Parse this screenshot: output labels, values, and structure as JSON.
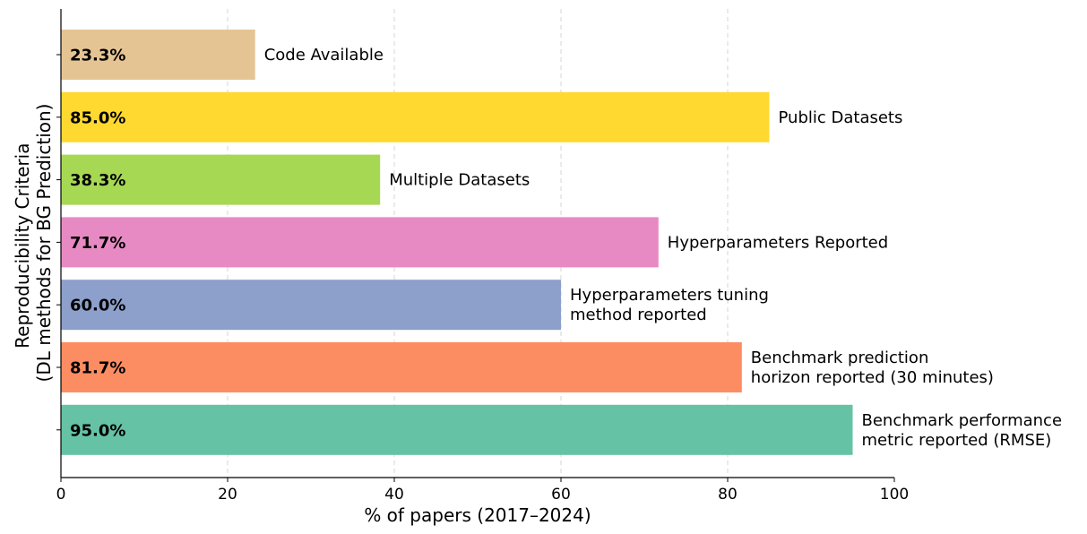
{
  "chart_data": {
    "type": "bar",
    "orientation": "horizontal",
    "xlabel": "% of papers (2017–2024)",
    "ylabel_lines": [
      "Reproducibility Criteria",
      "(DL methods for BG Prediction)"
    ],
    "xlim": [
      0,
      100
    ],
    "xticks": [
      0,
      20,
      40,
      60,
      80,
      100
    ],
    "grid": "x-dashed",
    "bars": [
      {
        "label_lines": [
          "Code Available"
        ],
        "value": 23.3,
        "value_label": "23.3%",
        "color": "#e5c494"
      },
      {
        "label_lines": [
          "Public Datasets"
        ],
        "value": 85.0,
        "value_label": "85.0%",
        "color": "#ffd92f"
      },
      {
        "label_lines": [
          "Multiple Datasets"
        ],
        "value": 38.3,
        "value_label": "38.3%",
        "color": "#a6d854"
      },
      {
        "label_lines": [
          "Hyperparameters Reported"
        ],
        "value": 71.7,
        "value_label": "71.7%",
        "color": "#e78ac3"
      },
      {
        "label_lines": [
          "Hyperparameters tuning",
          "method reported"
        ],
        "value": 60.0,
        "value_label": "60.0%",
        "color": "#8da0cb"
      },
      {
        "label_lines": [
          "Benchmark prediction",
          "horizon reported (30 minutes)"
        ],
        "value": 81.7,
        "value_label": "81.7%",
        "color": "#fc8d62"
      },
      {
        "label_lines": [
          "Benchmark performance",
          "metric reported (RMSE)"
        ],
        "value": 95.0,
        "value_label": "95.0%",
        "color": "#66c2a5"
      }
    ]
  }
}
